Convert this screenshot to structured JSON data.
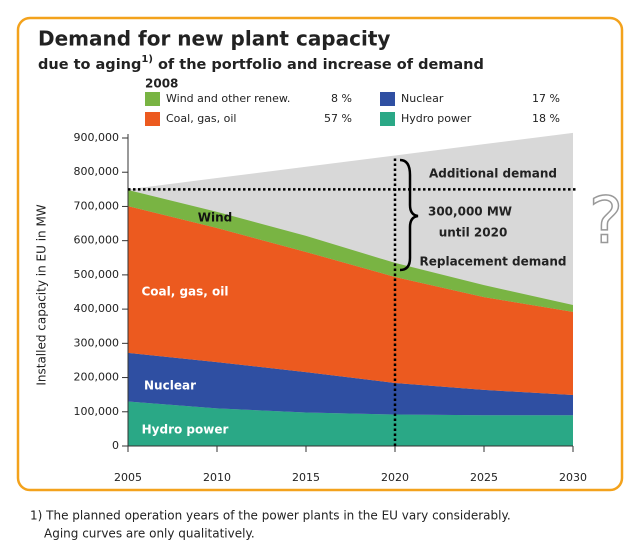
{
  "chart_data": {
    "type": "stacked_area",
    "title": "Demand for new plant capacity",
    "subtitle": [
      "due to aging",
      "1)",
      " of the portfolio and increase of demand"
    ],
    "legend_title": "2008",
    "ylabel": "Installed capacity in EU in MW",
    "x": [
      2005,
      2010,
      2015,
      2020,
      2025,
      2030
    ],
    "xlim": [
      2005,
      2030
    ],
    "xticks": [
      2005,
      2010,
      2015,
      2020,
      2025,
      2030
    ],
    "ylim": [
      0,
      900000
    ],
    "yticks": [
      0,
      {
        "value": 100000,
        "label": "100,000"
      },
      {
        "value": 200000,
        "label": "200,000"
      },
      {
        "value": 300000,
        "label": "300,000"
      },
      {
        "value": 400000,
        "label": "400,000"
      },
      {
        "value": 500000,
        "label": "500,000"
      },
      {
        "value": 600000,
        "label": "600,000"
      },
      {
        "value": 700000,
        "label": "700,000"
      },
      {
        "value": 800000,
        "label": "800,000"
      },
      {
        "value": 900000,
        "label": "900,000"
      }
    ],
    "series": [
      {
        "name": "Hydro power",
        "label": "Hydro power",
        "color": "#2aa886",
        "share": 18,
        "share_label": "18 %",
        "values": [
          130000,
          110000,
          98000,
          92000,
          90000,
          90000
        ]
      },
      {
        "name": "Nuclear",
        "label": "Nuclear",
        "color": "#2f4fa2",
        "share": 17,
        "share_label": "17 %",
        "values": [
          142000,
          135000,
          118000,
          92000,
          74000,
          59000
        ]
      },
      {
        "name": "Coal, gas, oil",
        "label": "Coal, gas, oil",
        "color": "#ec5a1f",
        "share": 57,
        "share_label": "57 %",
        "values": [
          429000,
          392000,
          351000,
          310000,
          271000,
          243000
        ]
      },
      {
        "name": "Wind and other renew.",
        "label": "Wind",
        "color": "#79b443",
        "share": 8,
        "share_label": "8 %",
        "values": [
          47000,
          47000,
          47000,
          41000,
          35000,
          20000
        ]
      }
    ],
    "demand": {
      "color": "#d8d8d8",
      "values": [
        750000,
        783000,
        816000,
        849000,
        882000,
        915000
      ]
    },
    "reference_line": 750000,
    "marker_x": 2020,
    "annotations": [
      "Additional demand",
      "300,000 MW",
      "until 2020",
      "Replacement demand",
      "?"
    ],
    "footnote": [
      "1) The planned operation years of the power plants in the EU vary considerably.",
      "Aging curves are only qualitatively."
    ]
  }
}
